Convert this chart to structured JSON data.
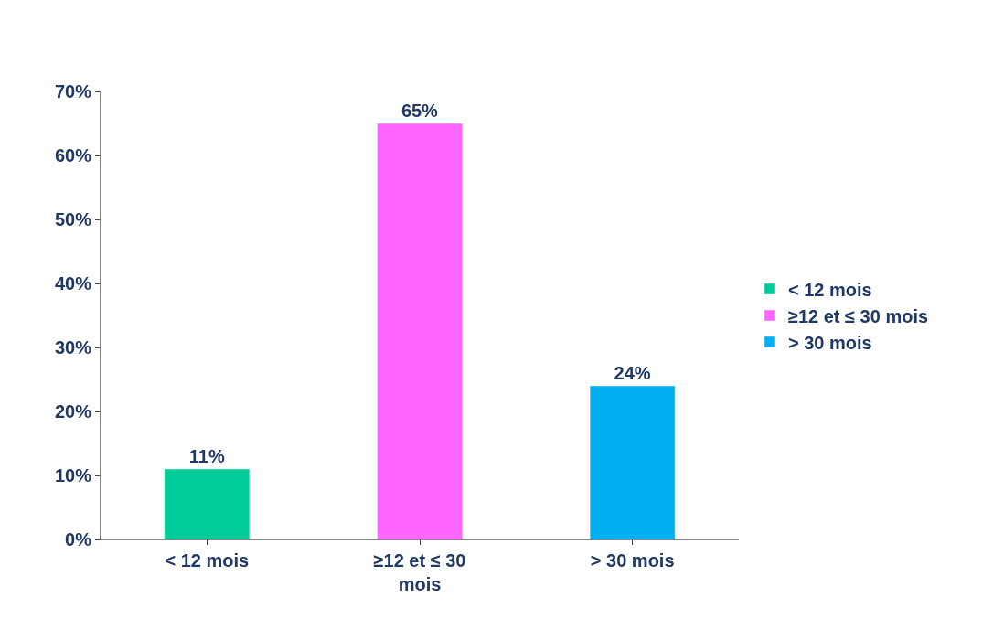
{
  "chart_data": {
    "type": "bar",
    "categories": [
      "< 12 mois",
      "≥12 et ≤ 30 mois",
      "> 30 mois"
    ],
    "series": [
      {
        "name": "< 12 mois",
        "color": "#00cc99",
        "values": [
          11,
          null,
          null
        ],
        "value_labels": [
          "11%",
          null,
          null
        ]
      },
      {
        "name": "≥12 et ≤ 30 mois",
        "color": "#ff66ff",
        "values": [
          null,
          65,
          null
        ],
        "value_labels": [
          null,
          "65%",
          null
        ]
      },
      {
        "name": "> 30 mois",
        "color": "#00b0f0",
        "values": [
          null,
          null,
          24
        ],
        "value_labels": [
          null,
          null,
          "24%"
        ]
      }
    ],
    "ylim": [
      0,
      70
    ],
    "yticks": [
      {
        "value": 0,
        "label": "0%"
      },
      {
        "value": 10,
        "label": "10%"
      },
      {
        "value": 20,
        "label": "20%"
      },
      {
        "value": 30,
        "label": "30%"
      },
      {
        "value": 40,
        "label": "40%"
      },
      {
        "value": 50,
        "label": "50%"
      },
      {
        "value": 60,
        "label": "60%"
      },
      {
        "value": 70,
        "label": "70%"
      }
    ],
    "legend": "right"
  }
}
